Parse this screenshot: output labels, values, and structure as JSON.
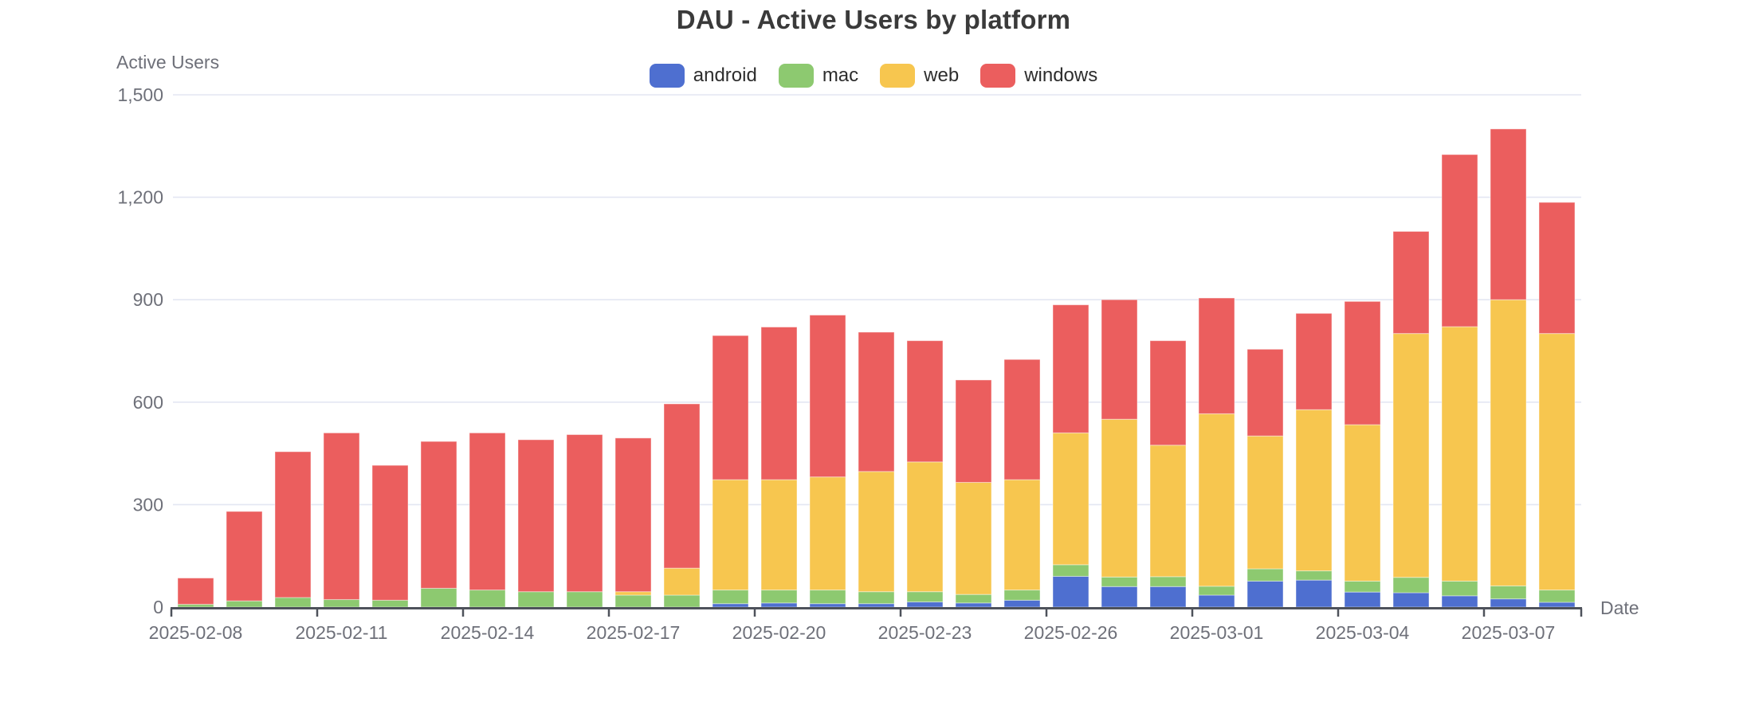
{
  "chart_data": {
    "type": "bar",
    "stacked": true,
    "title": "DAU - Active Users by platform",
    "xlabel": "Date",
    "ylabel": "Active Users",
    "ylim": [
      0,
      1500
    ],
    "grid": true,
    "legend_position": "top",
    "categories": [
      "2025-02-08",
      "2025-02-09",
      "2025-02-10",
      "2025-02-11",
      "2025-02-12",
      "2025-02-13",
      "2025-02-14",
      "2025-02-15",
      "2025-02-16",
      "2025-02-17",
      "2025-02-18",
      "2025-02-19",
      "2025-02-20",
      "2025-02-21",
      "2025-02-22",
      "2025-02-23",
      "2025-02-24",
      "2025-02-25",
      "2025-02-26",
      "2025-02-27",
      "2025-02-28",
      "2025-03-01",
      "2025-03-02",
      "2025-03-03",
      "2025-03-04",
      "2025-03-05",
      "2025-03-06",
      "2025-03-07",
      "2025-03-08"
    ],
    "x_tick_labels": [
      "2025-02-08",
      "2025-02-11",
      "2025-02-14",
      "2025-02-17",
      "2025-02-20",
      "2025-02-23",
      "2025-02-26",
      "2025-03-01",
      "2025-03-04",
      "2025-03-07"
    ],
    "y_ticks": [
      {
        "value": 0,
        "label": "0"
      },
      {
        "value": 300,
        "label": "300"
      },
      {
        "value": 600,
        "label": "600"
      },
      {
        "value": 900,
        "label": "900"
      },
      {
        "value": 1200,
        "label": "1,200"
      },
      {
        "value": 1500,
        "label": "1,500"
      }
    ],
    "series": [
      {
        "name": "android",
        "color": "#4E6FD0",
        "values": [
          0,
          0,
          0,
          0,
          0,
          0,
          0,
          0,
          0,
          0,
          0,
          10,
          12,
          10,
          10,
          15,
          12,
          20,
          90,
          60,
          60,
          35,
          76,
          79,
          44,
          42,
          33,
          24,
          14
        ]
      },
      {
        "name": "mac",
        "color": "#8DC970",
        "values": [
          8,
          18,
          28,
          22,
          20,
          55,
          50,
          45,
          45,
          35,
          35,
          40,
          38,
          40,
          35,
          30,
          25,
          30,
          34,
          28,
          29,
          26,
          36,
          27,
          32,
          45,
          43,
          38,
          36
        ]
      },
      {
        "name": "web",
        "color": "#F7C64F",
        "values": [
          0,
          0,
          0,
          0,
          0,
          0,
          0,
          0,
          0,
          10,
          79,
          323,
          323,
          331,
          352,
          380,
          328,
          323,
          386,
          462,
          385,
          505,
          389,
          472,
          458,
          714,
          745,
          838,
          751
        ]
      },
      {
        "name": "windows",
        "color": "#EB5E5E",
        "values": [
          77,
          262,
          427,
          488,
          395,
          430,
          460,
          445,
          460,
          450,
          481,
          422,
          447,
          474,
          408,
          355,
          300,
          352,
          375,
          350,
          306,
          339,
          254,
          282,
          361,
          299,
          504,
          500,
          384
        ]
      }
    ]
  },
  "style": {
    "background": "#ffffff",
    "title_color": "#3a3a3a",
    "axis_label_color": "#6e7079",
    "legend_text_color": "#2d2d2d",
    "axis_line_color": "#4e525b",
    "grid_color": "#e3e6f2",
    "bar_stroke": "rgba(255,255,255,0.45)"
  }
}
